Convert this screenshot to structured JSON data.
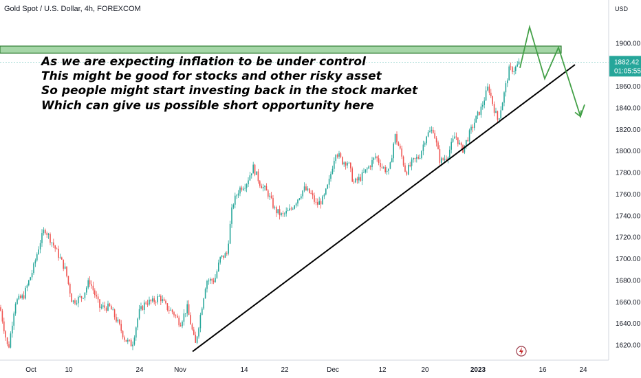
{
  "header": {
    "symbol_title": "Gold Spot / U.S. Dollar, 4h, FOREXCOM"
  },
  "price_axis": {
    "currency": "USD"
  },
  "last_price": {
    "value": "1882.42",
    "countdown": "01:05:55"
  },
  "annotation": {
    "lines": [
      "As we are expecting inflation to be under control",
      "This might be good for stocks and other risky asset",
      "So people might start investing back in the stock market",
      "Which can give us possible short opportunity here"
    ]
  },
  "colors": {
    "up": "#26a69a",
    "down": "#ef5350",
    "resistance_fill": "#a5d6a7",
    "resistance_border": "#2e7d32",
    "projection": "#43a047",
    "trendline": "#000000",
    "last_price_bg": "#26a69a"
  },
  "chart_data": {
    "type": "candlestick",
    "title": "Gold Spot / U.S. Dollar, 4h, FOREXCOM",
    "ylabel": "USD",
    "ylim": [
      1606,
      1940
    ],
    "y_ticks": [
      1620,
      1640,
      1660,
      1680,
      1700,
      1720,
      1740,
      1760,
      1780,
      1800,
      1820,
      1840,
      1860,
      1880,
      1900
    ],
    "x_ticks": [
      {
        "label": "Oct",
        "bold": false
      },
      {
        "label": "10",
        "bold": false
      },
      {
        "label": "24",
        "bold": false
      },
      {
        "label": "Nov",
        "bold": false
      },
      {
        "label": "14",
        "bold": false
      },
      {
        "label": "22",
        "bold": false
      },
      {
        "label": "Dec",
        "bold": false
      },
      {
        "label": "12",
        "bold": false
      },
      {
        "label": "20",
        "bold": false
      },
      {
        "label": "2023",
        "bold": true
      },
      {
        "label": "16",
        "bold": false
      },
      {
        "label": "24",
        "bold": false
      }
    ],
    "price_path": [
      [
        0,
        1655
      ],
      [
        6,
        1635
      ],
      [
        12,
        1615
      ],
      [
        22,
        1660
      ],
      [
        34,
        1665
      ],
      [
        48,
        1690
      ],
      [
        58,
        1715
      ],
      [
        65,
        1728
      ],
      [
        80,
        1710
      ],
      [
        95,
        1690
      ],
      [
        105,
        1660
      ],
      [
        120,
        1665
      ],
      [
        130,
        1680
      ],
      [
        145,
        1655
      ],
      [
        160,
        1655
      ],
      [
        172,
        1640
      ],
      [
        182,
        1625
      ],
      [
        192,
        1620
      ],
      [
        202,
        1650
      ],
      [
        212,
        1660
      ],
      [
        222,
        1660
      ],
      [
        232,
        1665
      ],
      [
        242,
        1655
      ],
      [
        252,
        1650
      ],
      [
        262,
        1640
      ],
      [
        272,
        1655
      ],
      [
        284,
        1620
      ],
      [
        292,
        1650
      ],
      [
        300,
        1680
      ],
      [
        312,
        1680
      ],
      [
        320,
        1700
      ],
      [
        330,
        1705
      ],
      [
        338,
        1750
      ],
      [
        348,
        1765
      ],
      [
        358,
        1770
      ],
      [
        368,
        1785
      ],
      [
        378,
        1770
      ],
      [
        390,
        1760
      ],
      [
        400,
        1745
      ],
      [
        410,
        1740
      ],
      [
        422,
        1745
      ],
      [
        432,
        1755
      ],
      [
        442,
        1765
      ],
      [
        452,
        1760
      ],
      [
        460,
        1750
      ],
      [
        470,
        1755
      ],
      [
        478,
        1770
      ],
      [
        488,
        1800
      ],
      [
        498,
        1790
      ],
      [
        506,
        1790
      ],
      [
        514,
        1770
      ],
      [
        524,
        1775
      ],
      [
        536,
        1785
      ],
      [
        546,
        1795
      ],
      [
        556,
        1785
      ],
      [
        566,
        1780
      ],
      [
        574,
        1815
      ],
      [
        582,
        1800
      ],
      [
        590,
        1780
      ],
      [
        600,
        1790
      ],
      [
        610,
        1795
      ],
      [
        620,
        1815
      ],
      [
        630,
        1820
      ],
      [
        640,
        1790
      ],
      [
        650,
        1795
      ],
      [
        662,
        1815
      ],
      [
        672,
        1800
      ],
      [
        682,
        1815
      ],
      [
        692,
        1830
      ],
      [
        700,
        1840
      ],
      [
        710,
        1860
      ],
      [
        718,
        1840
      ],
      [
        724,
        1828
      ],
      [
        732,
        1850
      ],
      [
        740,
        1875
      ],
      [
        748,
        1876
      ],
      [
        756,
        1882
      ]
    ],
    "resistance_zone": {
      "from": 1892,
      "to": 1896
    },
    "trendline": {
      "start_price": 1614,
      "end_price": 1880,
      "direction": "up"
    },
    "projection": {
      "points": [
        1877,
        1915,
        1867,
        1896,
        1832,
        1843
      ],
      "direction": "down"
    },
    "last_price_line": 1882.42,
    "grid": false
  }
}
